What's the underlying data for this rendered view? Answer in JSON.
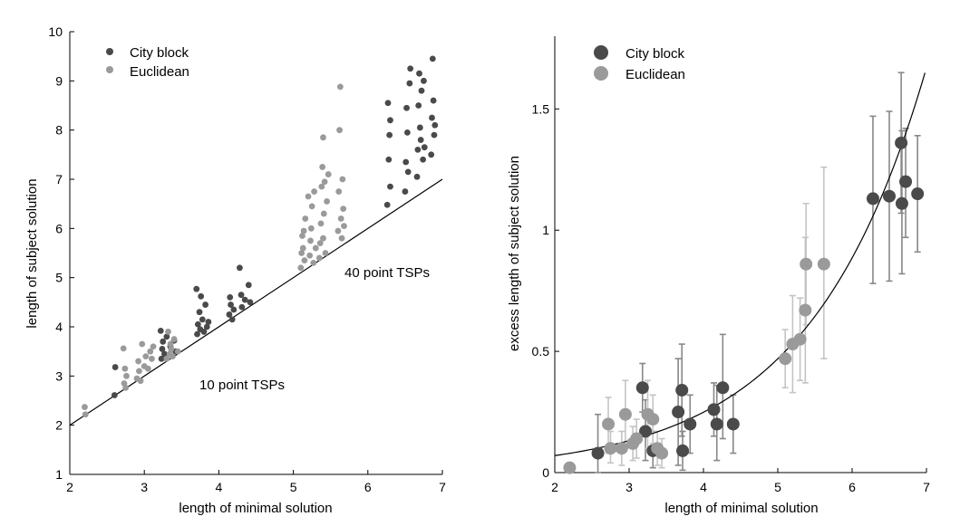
{
  "colors": {
    "city_block": "#4a4a4a",
    "euclidean": "#9a9a9a",
    "errorbar_city": "#888888",
    "errorbar_euclid": "#c4c4c4"
  },
  "chart_data": [
    {
      "type": "scatter",
      "xlabel": "length of minimal solution",
      "ylabel": "length of subject solution",
      "xlim": [
        2,
        7
      ],
      "ylim": [
        1,
        10
      ],
      "xticks": [
        "2",
        "3",
        "4",
        "5",
        "6",
        "7"
      ],
      "yticks": [
        "1",
        "2",
        "3",
        "4",
        "5",
        "6",
        "7",
        "8",
        "9",
        "10"
      ],
      "legend": [
        "City block",
        "Euclidean"
      ],
      "legend_position": "top-left",
      "annotations": [
        "40 point TSPs",
        "10 point TSPs"
      ],
      "reference_line": {
        "x": [
          2,
          7
        ],
        "y": [
          2,
          7
        ]
      },
      "series": [
        {
          "name": "City block",
          "points": [
            [
              2.61,
              3.18
            ],
            [
              2.6,
              2.61
            ],
            [
              3.22,
              3.92
            ],
            [
              3.23,
              3.35
            ],
            [
              3.24,
              3.55
            ],
            [
              3.25,
              3.7
            ],
            [
              3.27,
              3.45
            ],
            [
              3.3,
              3.8
            ],
            [
              3.35,
              3.6
            ],
            [
              3.4,
              3.72
            ],
            [
              3.42,
              3.5
            ],
            [
              3.7,
              4.77
            ],
            [
              3.71,
              3.85
            ],
            [
              3.72,
              4.05
            ],
            [
              3.74,
              4.3
            ],
            [
              3.75,
              3.95
            ],
            [
              3.76,
              4.62
            ],
            [
              3.78,
              4.15
            ],
            [
              3.8,
              3.9
            ],
            [
              3.82,
              4.45
            ],
            [
              3.84,
              4.0
            ],
            [
              3.86,
              4.1
            ],
            [
              4.14,
              4.25
            ],
            [
              4.15,
              4.6
            ],
            [
              4.16,
              4.45
            ],
            [
              4.18,
              4.15
            ],
            [
              4.2,
              4.35
            ],
            [
              4.28,
              5.2
            ],
            [
              4.3,
              4.65
            ],
            [
              4.31,
              4.4
            ],
            [
              4.35,
              4.55
            ],
            [
              4.4,
              4.85
            ],
            [
              4.42,
              4.5
            ],
            [
              6.26,
              6.48
            ],
            [
              6.27,
              8.55
            ],
            [
              6.28,
              7.4
            ],
            [
              6.29,
              7.9
            ],
            [
              6.3,
              6.85
            ],
            [
              6.3,
              8.2
            ],
            [
              6.5,
              6.75
            ],
            [
              6.51,
              7.35
            ],
            [
              6.52,
              8.45
            ],
            [
              6.53,
              7.95
            ],
            [
              6.54,
              7.15
            ],
            [
              6.56,
              8.95
            ],
            [
              6.57,
              9.25
            ],
            [
              6.66,
              7.05
            ],
            [
              6.67,
              7.6
            ],
            [
              6.68,
              8.5
            ],
            [
              6.69,
              9.15
            ],
            [
              6.7,
              8.05
            ],
            [
              6.71,
              7.8
            ],
            [
              6.72,
              8.8
            ],
            [
              6.74,
              7.4
            ],
            [
              6.75,
              9.0
            ],
            [
              6.76,
              7.65
            ],
            [
              6.85,
              7.5
            ],
            [
              6.86,
              8.25
            ],
            [
              6.87,
              9.45
            ],
            [
              6.88,
              8.6
            ],
            [
              6.89,
              7.9
            ],
            [
              6.9,
              8.1
            ]
          ]
        },
        {
          "name": "Euclidean",
          "points": [
            [
              2.2,
              2.37
            ],
            [
              2.21,
              2.22
            ],
            [
              2.72,
              3.56
            ],
            [
              2.73,
              2.85
            ],
            [
              2.74,
              3.15
            ],
            [
              2.75,
              2.76
            ],
            [
              2.76,
              3.0
            ],
            [
              2.9,
              2.95
            ],
            [
              2.92,
              3.3
            ],
            [
              2.93,
              3.1
            ],
            [
              2.95,
              2.9
            ],
            [
              2.97,
              3.65
            ],
            [
              3.0,
              3.2
            ],
            [
              3.02,
              3.4
            ],
            [
              3.05,
              3.15
            ],
            [
              3.08,
              3.5
            ],
            [
              3.1,
              3.35
            ],
            [
              3.12,
              3.6
            ],
            [
              3.3,
              3.35
            ],
            [
              3.32,
              3.9
            ],
            [
              3.34,
              3.45
            ],
            [
              3.35,
              3.65
            ],
            [
              3.36,
              3.55
            ],
            [
              3.38,
              3.4
            ],
            [
              3.4,
              3.75
            ],
            [
              3.45,
              3.5
            ],
            [
              5.1,
              5.2
            ],
            [
              5.11,
              5.5
            ],
            [
              5.12,
              5.85
            ],
            [
              5.13,
              5.6
            ],
            [
              5.14,
              5.95
            ],
            [
              5.15,
              5.35
            ],
            [
              5.16,
              6.2
            ],
            [
              5.2,
              6.65
            ],
            [
              5.22,
              5.45
            ],
            [
              5.23,
              5.75
            ],
            [
              5.24,
              6.0
            ],
            [
              5.25,
              6.45
            ],
            [
              5.27,
              5.3
            ],
            [
              5.28,
              6.75
            ],
            [
              5.3,
              5.6
            ],
            [
              5.35,
              5.4
            ],
            [
              5.36,
              5.7
            ],
            [
              5.37,
              6.1
            ],
            [
              5.38,
              6.85
            ],
            [
              5.39,
              7.25
            ],
            [
              5.4,
              7.85
            ],
            [
              5.4,
              5.8
            ],
            [
              5.41,
              6.3
            ],
            [
              5.42,
              6.95
            ],
            [
              5.43,
              5.5
            ],
            [
              5.45,
              6.55
            ],
            [
              5.47,
              7.1
            ],
            [
              5.6,
              5.95
            ],
            [
              5.61,
              6.75
            ],
            [
              5.62,
              8.0
            ],
            [
              5.63,
              8.88
            ],
            [
              5.64,
              6.2
            ],
            [
              5.65,
              5.8
            ],
            [
              5.66,
              7.0
            ],
            [
              5.67,
              6.4
            ],
            [
              5.68,
              6.05
            ]
          ]
        }
      ]
    },
    {
      "type": "scatter",
      "xlabel": "length of minimal solution",
      "ylabel": "excess length of subject solution",
      "xlim": [
        2,
        7
      ],
      "ylim": [
        0,
        1.8
      ],
      "xticks": [
        "2",
        "3",
        "4",
        "5",
        "6",
        "7"
      ],
      "yticks": [
        "0",
        "0.5",
        "1",
        "1.5"
      ],
      "ytick_values": [
        0,
        0.5,
        1,
        1.5
      ],
      "legend": [
        "City block",
        "Euclidean"
      ],
      "legend_position": "top-left",
      "fit_curve": {
        "type": "exponential",
        "x_range": [
          2,
          6.98
        ],
        "y_at_x2": 0.07,
        "y_at_x7": 1.67
      },
      "series": [
        {
          "name": "City block",
          "points": [
            {
              "x": 2.58,
              "y": 0.08,
              "lo": 0.0,
              "hi": 0.24
            },
            {
              "x": 3.18,
              "y": 0.35,
              "lo": 0.25,
              "hi": 0.45
            },
            {
              "x": 3.22,
              "y": 0.17,
              "lo": 0.05,
              "hi": 0.3
            },
            {
              "x": 3.32,
              "y": 0.09,
              "lo": 0.02,
              "hi": 0.17
            },
            {
              "x": 3.66,
              "y": 0.25,
              "lo": 0.03,
              "hi": 0.47
            },
            {
              "x": 3.71,
              "y": 0.34,
              "lo": 0.15,
              "hi": 0.53
            },
            {
              "x": 3.72,
              "y": 0.09,
              "lo": 0.01,
              "hi": 0.17
            },
            {
              "x": 3.82,
              "y": 0.2,
              "lo": 0.08,
              "hi": 0.32
            },
            {
              "x": 4.14,
              "y": 0.26,
              "lo": 0.15,
              "hi": 0.37
            },
            {
              "x": 4.18,
              "y": 0.2,
              "lo": 0.05,
              "hi": 0.36
            },
            {
              "x": 4.26,
              "y": 0.35,
              "lo": 0.14,
              "hi": 0.57
            },
            {
              "x": 4.4,
              "y": 0.2,
              "lo": 0.08,
              "hi": 0.32
            },
            {
              "x": 6.28,
              "y": 1.13,
              "lo": 0.78,
              "hi": 1.47
            },
            {
              "x": 6.5,
              "y": 1.14,
              "lo": 0.79,
              "hi": 1.49
            },
            {
              "x": 6.66,
              "y": 1.36,
              "lo": 1.07,
              "hi": 1.65
            },
            {
              "x": 6.67,
              "y": 1.11,
              "lo": 0.82,
              "hi": 1.41
            },
            {
              "x": 6.72,
              "y": 1.2,
              "lo": 0.97,
              "hi": 1.42
            },
            {
              "x": 6.88,
              "y": 1.15,
              "lo": 0.91,
              "hi": 1.39
            }
          ]
        },
        {
          "name": "Euclidean",
          "points": [
            {
              "x": 2.2,
              "y": 0.02,
              "lo": 0.0,
              "hi": 0.04
            },
            {
              "x": 2.72,
              "y": 0.2,
              "lo": 0.08,
              "hi": 0.31
            },
            {
              "x": 2.75,
              "y": 0.1,
              "lo": 0.04,
              "hi": 0.17
            },
            {
              "x": 2.9,
              "y": 0.1,
              "lo": 0.03,
              "hi": 0.17
            },
            {
              "x": 2.95,
              "y": 0.24,
              "lo": 0.1,
              "hi": 0.38
            },
            {
              "x": 3.05,
              "y": 0.12,
              "lo": 0.05,
              "hi": 0.19
            },
            {
              "x": 3.1,
              "y": 0.14,
              "lo": 0.06,
              "hi": 0.22
            },
            {
              "x": 3.25,
              "y": 0.24,
              "lo": 0.1,
              "hi": 0.38
            },
            {
              "x": 3.32,
              "y": 0.22,
              "lo": 0.12,
              "hi": 0.32
            },
            {
              "x": 3.38,
              "y": 0.1,
              "lo": 0.03,
              "hi": 0.17
            },
            {
              "x": 3.44,
              "y": 0.08,
              "lo": 0.02,
              "hi": 0.14
            },
            {
              "x": 5.1,
              "y": 0.47,
              "lo": 0.35,
              "hi": 0.59
            },
            {
              "x": 5.2,
              "y": 0.53,
              "lo": 0.33,
              "hi": 0.73
            },
            {
              "x": 5.3,
              "y": 0.55,
              "lo": 0.38,
              "hi": 0.72
            },
            {
              "x": 5.37,
              "y": 0.67,
              "lo": 0.37,
              "hi": 0.97
            },
            {
              "x": 5.38,
              "y": 0.86,
              "lo": 0.61,
              "hi": 1.11
            },
            {
              "x": 5.62,
              "y": 0.86,
              "lo": 0.47,
              "hi": 1.26
            }
          ]
        }
      ]
    }
  ]
}
